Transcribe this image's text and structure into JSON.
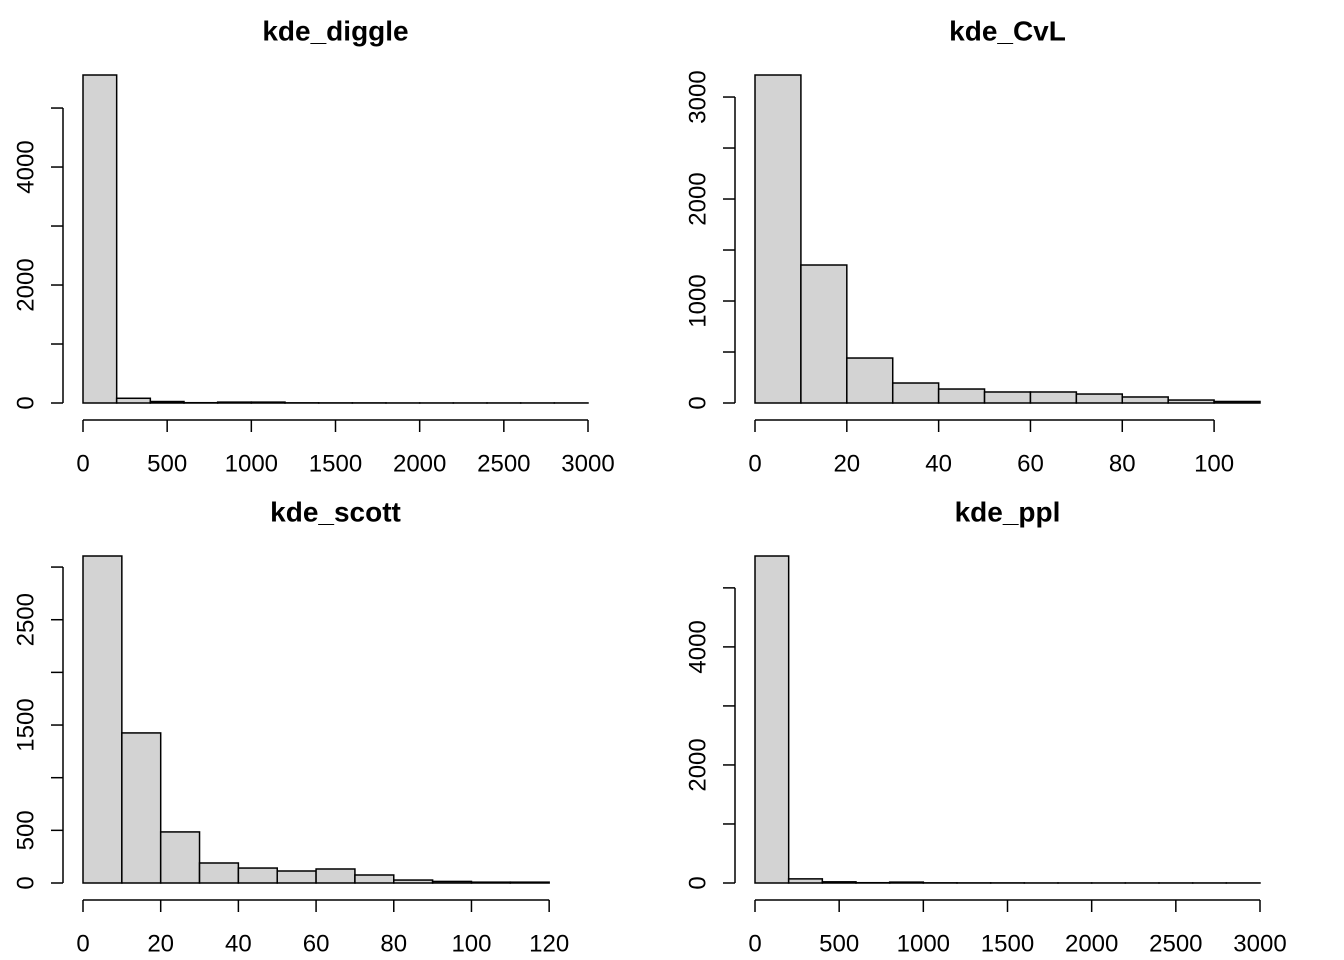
{
  "chart_data": [
    {
      "type": "histogram",
      "title": "kde_diggle",
      "color": "#d3d3d3",
      "bins": [
        0,
        200,
        400,
        600,
        800,
        1000,
        1200,
        1400,
        1600,
        1800,
        2000,
        2200,
        2400,
        2600,
        2800,
        3000
      ],
      "values": [
        5560,
        80,
        25,
        5,
        15,
        15,
        3,
        2,
        2,
        1,
        1,
        1,
        1,
        1,
        1
      ],
      "xlim": [
        0,
        3000
      ],
      "xticks": [
        0,
        500,
        1000,
        1500,
        2000,
        2500,
        3000
      ],
      "ylim": [
        0,
        5560
      ],
      "yticks": [
        0,
        2000,
        4000
      ],
      "yminorticks": [
        1000,
        3000,
        5000
      ]
    },
    {
      "type": "histogram",
      "title": "kde_CvL",
      "color": "#d3d3d3",
      "bins": [
        0,
        10,
        20,
        30,
        40,
        50,
        60,
        70,
        80,
        90,
        100,
        110
      ],
      "values": [
        3216,
        1353,
        441,
        196,
        137,
        108,
        108,
        88,
        59,
        29,
        15
      ],
      "xlim": [
        0,
        110
      ],
      "xticks": [
        0,
        20,
        40,
        60,
        80,
        100
      ],
      "ylim": [
        0,
        3216
      ],
      "yticks": [
        0,
        1000,
        2000,
        3000
      ],
      "yminorticks": [
        500,
        1500,
        2500
      ]
    },
    {
      "type": "histogram",
      "title": "kde_scott",
      "color": "#d3d3d3",
      "bins": [
        0,
        10,
        20,
        30,
        40,
        50,
        60,
        70,
        80,
        90,
        100,
        110,
        120
      ],
      "values": [
        3105,
        1425,
        485,
        190,
        142,
        114,
        133,
        76,
        28,
        15,
        8,
        8
      ],
      "xlim": [
        0,
        130
      ],
      "xticks": [
        0,
        20,
        40,
        60,
        80,
        100,
        120
      ],
      "ylim": [
        0,
        3105
      ],
      "yticks": [
        0,
        500,
        1500,
        2500
      ],
      "yminorticks": [
        1000,
        2000,
        3000
      ]
    },
    {
      "type": "histogram",
      "title": "kde_ppl",
      "color": "#d3d3d3",
      "bins": [
        0,
        200,
        400,
        600,
        800,
        1000,
        1200,
        1400,
        1600,
        1800,
        2000,
        2200,
        2400,
        2600,
        2800,
        3000
      ],
      "values": [
        5540,
        70,
        20,
        5,
        15,
        3,
        2,
        2,
        1,
        1,
        1,
        1,
        1,
        1,
        1
      ],
      "xlim": [
        0,
        3000
      ],
      "xticks": [
        0,
        500,
        1000,
        1500,
        2000,
        2500,
        3000
      ],
      "ylim": [
        0,
        5540
      ],
      "yticks": [
        0,
        2000,
        4000
      ],
      "yminorticks": [
        1000,
        3000,
        5000
      ]
    }
  ]
}
